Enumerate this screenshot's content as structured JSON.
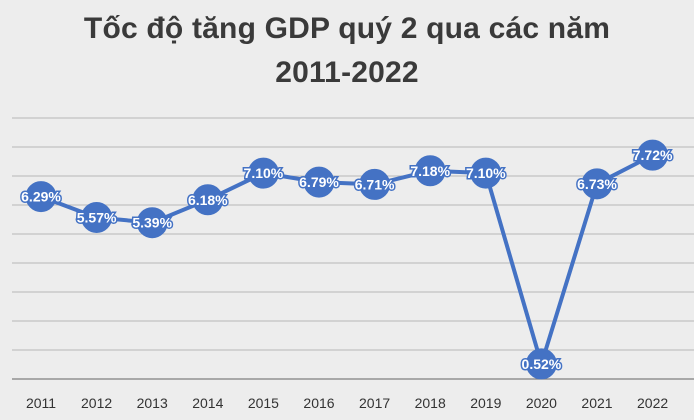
{
  "title_line1": "Tốc độ tăng GDP quý 2 qua các năm",
  "title_line2": "2011-2022",
  "colors": {
    "background": "#ededed",
    "series": "#4472c4",
    "gridline": "#b8b8b8",
    "axis": "#7f7f7f"
  },
  "chart_data": {
    "type": "line",
    "title": "Tốc độ tăng GDP quý 2 qua các năm 2011-2022",
    "categories": [
      "2011",
      "2012",
      "2013",
      "2014",
      "2015",
      "2016",
      "2017",
      "2018",
      "2019",
      "2020",
      "2021",
      "2022"
    ],
    "series": [
      {
        "values": [
          6.29,
          5.57,
          5.39,
          6.18,
          7.1,
          6.79,
          6.71,
          7.18,
          7.1,
          0.52,
          6.73,
          7.72
        ],
        "labels": [
          "6.29%",
          "5.57%",
          "5.39%",
          "6.18%",
          "7.10%",
          "6.79%",
          "6.71%",
          "7.18%",
          "7.10%",
          "0.52%",
          "6.73%",
          "7.72%"
        ]
      }
    ],
    "ylim": [
      0,
      9
    ],
    "grid": true,
    "y_axis_labels_shown": false,
    "legend": "none"
  }
}
